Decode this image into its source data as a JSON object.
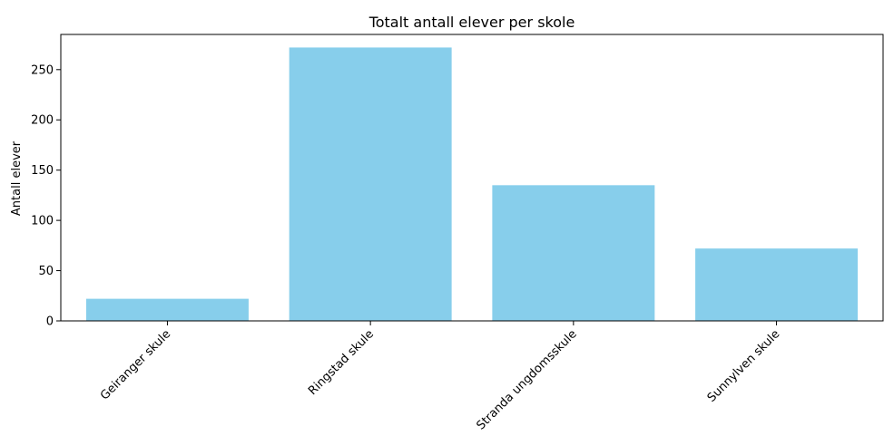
{
  "chart_data": {
    "type": "bar",
    "title": "Totalt antall elever per skole",
    "xlabel": "",
    "ylabel": "Antall elever",
    "categories": [
      "Geiranger skule",
      "Ringstad skule",
      "Stranda ungdomsskule",
      "Sunnylven skule"
    ],
    "values": [
      22,
      272,
      135,
      72
    ],
    "ylim": [
      0,
      285
    ],
    "yticks": [
      "0",
      "50",
      "100",
      "150",
      "200",
      "250"
    ],
    "bar_color": "#87CEEB",
    "grid": false,
    "legend": "none"
  }
}
